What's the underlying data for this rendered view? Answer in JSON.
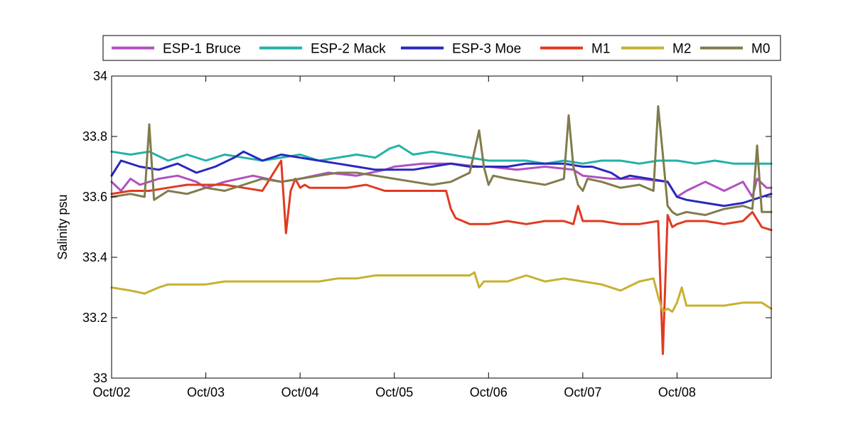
{
  "chart_data": {
    "type": "line",
    "title": "",
    "xlabel": "",
    "ylabel": "Salinity psu",
    "xlim": [
      0,
      7
    ],
    "ylim": [
      33,
      34
    ],
    "yticks": [
      33,
      33.2,
      33.4,
      33.6,
      33.8,
      34
    ],
    "ytick_labels": [
      "33",
      "33.2",
      "33.4",
      "33.6",
      "33.8",
      "34"
    ],
    "xticks": [
      0,
      1,
      2,
      3,
      4,
      5,
      6
    ],
    "xtick_labels": [
      "Oct/02",
      "Oct/03",
      "Oct/04",
      "Oct/05",
      "Oct/06",
      "Oct/07",
      "Oct/08"
    ],
    "grid": false,
    "legend_position": "top",
    "x_units": "days since Oct/02",
    "series": [
      {
        "name": "ESP-1 Bruce",
        "color": "#b150c0",
        "x": [
          0,
          0.1,
          0.2,
          0.3,
          0.5,
          0.7,
          0.9,
          1.0,
          1.2,
          1.5,
          1.8,
          2.0,
          2.3,
          2.6,
          2.9,
          3.0,
          3.3,
          3.6,
          3.9,
          4.0,
          4.3,
          4.6,
          4.9,
          5.0,
          5.3,
          5.6,
          5.9,
          6.0,
          6.1,
          6.3,
          6.5,
          6.7,
          6.8,
          6.85,
          6.95,
          7.0
        ],
        "y": [
          33.65,
          33.62,
          33.66,
          33.64,
          33.66,
          33.67,
          33.65,
          33.63,
          33.65,
          33.67,
          33.65,
          33.66,
          33.68,
          33.67,
          33.69,
          33.7,
          33.71,
          33.71,
          33.7,
          33.7,
          33.69,
          33.7,
          33.69,
          33.67,
          33.66,
          33.66,
          33.65,
          33.6,
          33.62,
          33.65,
          33.62,
          33.65,
          33.6,
          33.66,
          33.63,
          33.63
        ]
      },
      {
        "name": "ESP-2 Mack",
        "color": "#22b2a8",
        "x": [
          0,
          0.2,
          0.4,
          0.6,
          0.8,
          1.0,
          1.2,
          1.4,
          1.6,
          1.8,
          2.0,
          2.2,
          2.4,
          2.6,
          2.8,
          2.95,
          3.05,
          3.2,
          3.4,
          3.6,
          3.8,
          4.0,
          4.2,
          4.4,
          4.6,
          4.8,
          5.0,
          5.2,
          5.4,
          5.6,
          5.8,
          6.0,
          6.2,
          6.4,
          6.6,
          6.8,
          7.0
        ],
        "y": [
          33.75,
          33.74,
          33.75,
          33.72,
          33.74,
          33.72,
          33.74,
          33.73,
          33.72,
          33.73,
          33.74,
          33.72,
          33.73,
          33.74,
          33.73,
          33.76,
          33.77,
          33.74,
          33.75,
          33.74,
          33.73,
          33.72,
          33.72,
          33.72,
          33.71,
          33.72,
          33.71,
          33.72,
          33.72,
          33.71,
          33.72,
          33.72,
          33.71,
          33.72,
          33.71,
          33.71,
          33.71
        ]
      },
      {
        "name": "ESP-3 Moe",
        "color": "#2828c0",
        "x": [
          0,
          0.1,
          0.3,
          0.5,
          0.7,
          0.9,
          1.1,
          1.3,
          1.4,
          1.6,
          1.8,
          2.0,
          2.2,
          2.4,
          2.6,
          2.8,
          3.0,
          3.2,
          3.4,
          3.6,
          3.8,
          4.0,
          4.2,
          4.4,
          4.6,
          4.8,
          5.0,
          5.1,
          5.2,
          5.3,
          5.4,
          5.5,
          5.7,
          5.9,
          6.0,
          6.1,
          6.3,
          6.5,
          6.7,
          6.9,
          7.0
        ],
        "y": [
          33.67,
          33.72,
          33.7,
          33.69,
          33.71,
          33.68,
          33.7,
          33.73,
          33.75,
          33.72,
          33.74,
          33.73,
          33.72,
          33.71,
          33.7,
          33.69,
          33.69,
          33.69,
          33.7,
          33.71,
          33.7,
          33.7,
          33.7,
          33.71,
          33.71,
          33.71,
          33.7,
          33.7,
          33.69,
          33.68,
          33.66,
          33.67,
          33.66,
          33.65,
          33.6,
          33.59,
          33.58,
          33.57,
          33.58,
          33.6,
          33.61
        ]
      },
      {
        "name": "M1",
        "color": "#e03a20",
        "x": [
          0,
          0.2,
          0.4,
          0.6,
          0.8,
          1.0,
          1.2,
          1.4,
          1.6,
          1.7,
          1.8,
          1.85,
          1.9,
          1.95,
          2.0,
          2.05,
          2.1,
          2.3,
          2.5,
          2.7,
          2.9,
          3.0,
          3.2,
          3.4,
          3.55,
          3.6,
          3.65,
          3.8,
          4.0,
          4.2,
          4.4,
          4.6,
          4.8,
          4.9,
          4.95,
          5.0,
          5.2,
          5.4,
          5.6,
          5.8,
          5.85,
          5.9,
          5.95,
          6.0,
          6.1,
          6.3,
          6.5,
          6.7,
          6.8,
          6.9,
          7.0
        ],
        "y": [
          33.61,
          33.62,
          33.62,
          33.63,
          33.64,
          33.64,
          33.64,
          33.63,
          33.62,
          33.67,
          33.72,
          33.48,
          33.62,
          33.66,
          33.63,
          33.64,
          33.63,
          33.63,
          33.63,
          33.64,
          33.62,
          33.62,
          33.62,
          33.62,
          33.62,
          33.56,
          33.53,
          33.51,
          33.51,
          33.52,
          33.51,
          33.52,
          33.52,
          33.51,
          33.57,
          33.52,
          33.52,
          33.51,
          33.51,
          33.52,
          33.08,
          33.54,
          33.5,
          33.51,
          33.52,
          33.52,
          33.51,
          33.52,
          33.55,
          33.5,
          33.49
        ]
      },
      {
        "name": "M2",
        "color": "#c8b030",
        "x": [
          0,
          0.2,
          0.35,
          0.5,
          0.6,
          0.8,
          1.0,
          1.2,
          1.4,
          1.6,
          1.8,
          2.0,
          2.2,
          2.4,
          2.6,
          2.8,
          3.0,
          3.2,
          3.4,
          3.6,
          3.8,
          3.85,
          3.9,
          3.95,
          4.0,
          4.2,
          4.4,
          4.6,
          4.8,
          5.0,
          5.2,
          5.4,
          5.6,
          5.75,
          5.8,
          5.85,
          5.9,
          5.95,
          6.0,
          6.05,
          6.1,
          6.3,
          6.5,
          6.7,
          6.9,
          7.0
        ],
        "y": [
          33.3,
          33.29,
          33.28,
          33.3,
          33.31,
          33.31,
          33.31,
          33.32,
          33.32,
          33.32,
          33.32,
          33.32,
          33.32,
          33.33,
          33.33,
          33.34,
          33.34,
          33.34,
          33.34,
          33.34,
          33.34,
          33.35,
          33.3,
          33.32,
          33.32,
          33.32,
          33.34,
          33.32,
          33.33,
          33.32,
          33.31,
          33.29,
          33.32,
          33.33,
          33.27,
          33.22,
          33.23,
          33.22,
          33.25,
          33.3,
          33.24,
          33.24,
          33.24,
          33.25,
          33.25,
          33.23
        ]
      },
      {
        "name": "M0",
        "color": "#807c4c",
        "x": [
          0,
          0.2,
          0.35,
          0.4,
          0.45,
          0.6,
          0.8,
          1.0,
          1.2,
          1.4,
          1.6,
          1.8,
          2.0,
          2.2,
          2.4,
          2.6,
          2.8,
          3.0,
          3.2,
          3.4,
          3.6,
          3.8,
          3.9,
          3.95,
          4.0,
          4.05,
          4.2,
          4.4,
          4.6,
          4.8,
          4.85,
          4.9,
          4.95,
          5.0,
          5.05,
          5.2,
          5.4,
          5.6,
          5.75,
          5.8,
          5.85,
          5.9,
          5.95,
          6.0,
          6.1,
          6.3,
          6.5,
          6.7,
          6.8,
          6.85,
          6.9,
          7.0
        ],
        "y": [
          33.6,
          33.61,
          33.6,
          33.84,
          33.59,
          33.62,
          33.61,
          33.63,
          33.62,
          33.64,
          33.66,
          33.65,
          33.66,
          33.67,
          33.68,
          33.68,
          33.67,
          33.66,
          33.65,
          33.64,
          33.65,
          33.68,
          33.82,
          33.7,
          33.64,
          33.67,
          33.66,
          33.65,
          33.64,
          33.66,
          33.87,
          33.7,
          33.64,
          33.62,
          33.66,
          33.65,
          33.63,
          33.64,
          33.62,
          33.9,
          33.74,
          33.57,
          33.55,
          33.54,
          33.55,
          33.54,
          33.56,
          33.57,
          33.56,
          33.77,
          33.55,
          33.55
        ]
      }
    ]
  }
}
